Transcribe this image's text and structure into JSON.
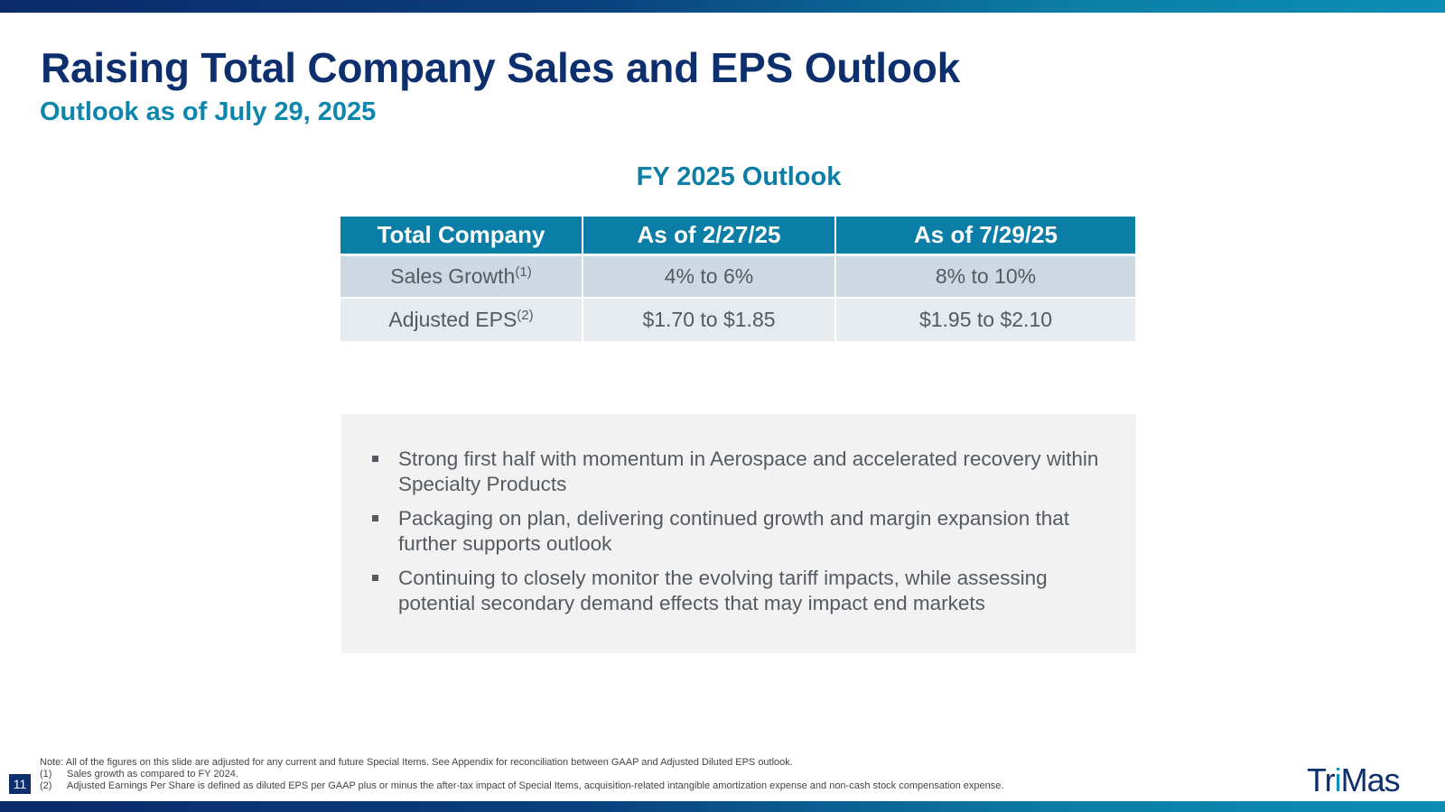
{
  "slide": {
    "title": "Raising Total Company Sales and EPS Outlook",
    "subtitle": "Outlook as of July 29, 2025",
    "page_number": "11",
    "brand": {
      "navy": "#0d2f6e",
      "teal": "#0a7ea7"
    }
  },
  "outlook_table": {
    "heading": "FY 2025 Outlook",
    "columns": [
      "Total Company",
      "As of 2/27/25",
      "As of 7/29/25"
    ],
    "rows": [
      {
        "label": "Sales Growth",
        "note": "(1)",
        "values": [
          "4% to 6%",
          "8% to 10%"
        ]
      },
      {
        "label": "Adjusted EPS",
        "note": "(2)",
        "values": [
          "$1.70 to $1.85",
          "$1.95 to $2.10"
        ]
      }
    ]
  },
  "bullets": [
    "Strong first half with momentum in Aerospace and accelerated recovery within Specialty Products",
    "Packaging on plan, delivering continued growth and margin expansion that further supports outlook",
    "Continuing to closely monitor the evolving tariff impacts, while assessing potential secondary demand effects that may impact end markets"
  ],
  "footnotes": {
    "note": "Note: All of the figures on this slide are adjusted for any current and future Special Items. See Appendix for reconciliation between GAAP and Adjusted Diluted EPS outlook.",
    "items": [
      {
        "num": "(1)",
        "text": "Sales growth as compared to FY 2024."
      },
      {
        "num": "(2)",
        "text": "Adjusted Earnings Per Share is defined as diluted EPS per GAAP plus or minus the after-tax impact of Special Items, acquisition-related intangible amortization expense and non-cash stock compensation expense."
      }
    ]
  },
  "logo": {
    "text_1": "Tr",
    "text_dot": "i",
    "text_2": "Mas",
    "icon": "trimas-logo"
  }
}
